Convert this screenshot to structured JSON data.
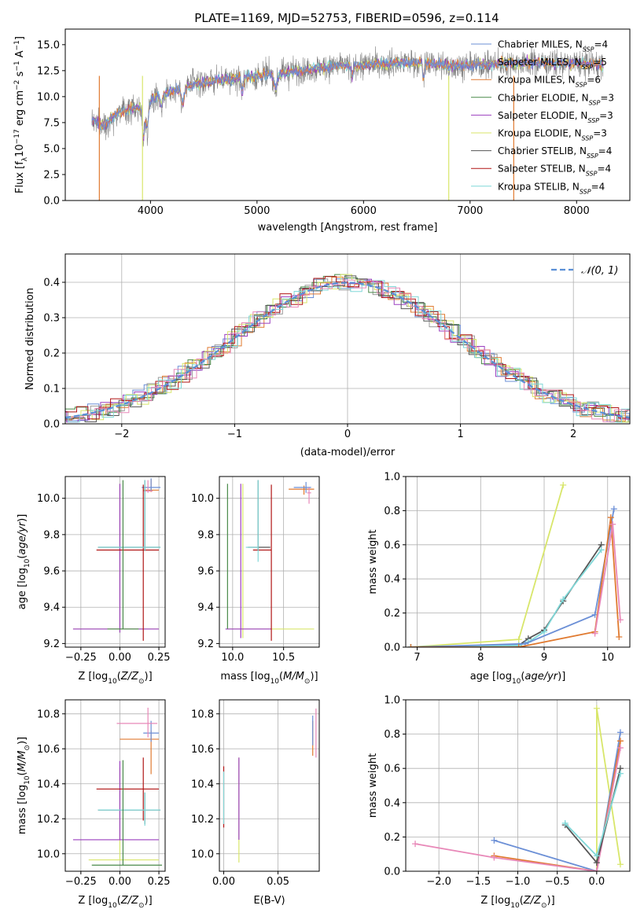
{
  "figure_title": "PLATE=1169, MJD=52753, FIBERID=0596, z=0.114",
  "colors": {
    "chabrier_miles": "#6b8fd6",
    "salpeter_miles": "#9a9a9a",
    "kroupa_miles": "#e07a30",
    "chabrier_elodie": "#4a8a4a",
    "salpeter_elodie": "#9b3fbf",
    "kroupa_elodie": "#d8e66a",
    "chabrier_stelib": "#555555",
    "salpeter_stelib": "#b01515",
    "kroupa_stelib": "#80d8d8",
    "pink": "#e888b8",
    "gauss": "#5a8fd6",
    "grid": "#b0b0b0"
  },
  "chart_data": [
    {
      "id": "spectrum",
      "type": "line",
      "title": "PLATE=1169, MJD=52753, FIBERID=0596, z=0.114",
      "xlabel": "wavelength [Angstrom, rest frame]",
      "ylabel": "Flux [f_λ 10^-17 erg cm^-2 s^-1 A^-1]",
      "xlim": [
        3200,
        8500
      ],
      "ylim": [
        0,
        16.5
      ],
      "xticks": [
        "4000",
        "5000",
        "6000",
        "7000",
        "8000"
      ],
      "yticks": [
        "0.0",
        "2.5",
        "5.0",
        "7.5",
        "10.0",
        "12.5",
        "15.0"
      ],
      "legend": [
        "Chabrier MILES, NSSP=4",
        "Salpeter MILES, NSSP=5",
        "Kroupa MILES, NSSP=6",
        "Chabrier ELODIE, NSSP=3",
        "Salpeter ELODIE, NSSP=3",
        "Kroupa ELODIE, NSSP=3",
        "Chabrier STELIB, NSSP=4",
        "Salpeter STELIB, NSSP=4",
        "Kroupa STELIB, NSSP=4"
      ],
      "legend_placement": "right",
      "data_envelope": {
        "x": [
          3450,
          3550,
          3700,
          3900,
          4000,
          4200,
          4400,
          4600,
          4800,
          5000,
          5200,
          5400,
          5600,
          5800,
          6000,
          6200,
          6400,
          6600,
          6800,
          7000,
          7200,
          7400,
          7600,
          7800,
          8000,
          8200,
          8250
        ],
        "y": [
          7.8,
          7.2,
          8.5,
          9.0,
          9.8,
          10.5,
          11.2,
          11.5,
          11.8,
          12.0,
          12.3,
          12.5,
          12.8,
          13.0,
          13.0,
          13.2,
          13.3,
          13.2,
          13.0,
          13.0,
          13.1,
          13.2,
          13.3,
          13.2,
          13.2,
          13.1,
          13.0
        ]
      }
    },
    {
      "id": "residuals",
      "type": "histogram",
      "xlabel": "(data-model)/error",
      "ylabel": "Normed distribution",
      "xlim": [
        -2.5,
        2.5
      ],
      "ylim": [
        0,
        0.48
      ],
      "xticks": [
        "−2",
        "−1",
        "0",
        "1",
        "2"
      ],
      "yticks": [
        "0.0",
        "0.1",
        "0.2",
        "0.3",
        "0.4"
      ],
      "legend": [
        "𝒩(0, 1)"
      ],
      "legend_placement": "top-right"
    },
    {
      "id": "age_vs_Z",
      "type": "scatter",
      "xlabel": "Z [log10(Z/Z⊙)]",
      "ylabel": "age  [log10(age/yr)]",
      "xlim": [
        -0.35,
        0.29
      ],
      "ylim": [
        9.18,
        10.12
      ],
      "xticks": [
        "−0.25",
        "0.00",
        "0.25"
      ],
      "yticks": [
        "9.2",
        "9.4",
        "9.6",
        "9.8",
        "10.0"
      ]
    },
    {
      "id": "age_vs_mass",
      "type": "scatter",
      "xlabel": "mass [log10(M/M⊙)]",
      "xlim": [
        9.87,
        10.85
      ],
      "ylim": [
        9.18,
        10.12
      ],
      "xticks": [
        "10.0",
        "10.5"
      ],
      "yticks": [
        "9.2",
        "9.4",
        "9.6",
        "9.8",
        "10.0"
      ]
    },
    {
      "id": "weight_vs_age",
      "type": "line",
      "xlabel": "age  [log10(age/yr)]",
      "ylabel": "mass weight",
      "xlim": [
        6.82,
        10.35
      ],
      "ylim": [
        0,
        1.0
      ],
      "xticks": [
        "7",
        "8",
        "9",
        "10"
      ],
      "yticks": [
        "0.0",
        "0.2",
        "0.4",
        "0.6",
        "0.8",
        "1.0"
      ],
      "series": [
        {
          "color": "kroupa_elodie",
          "x": [
            6.9,
            8.6,
            9.3
          ],
          "y": [
            0.0,
            0.045,
            0.95
          ]
        },
        {
          "color": "chabrier_stelib",
          "x": [
            6.9,
            8.6,
            8.75,
            9.0,
            9.3,
            9.9
          ],
          "y": [
            0.0,
            0.01,
            0.05,
            0.1,
            0.27,
            0.6
          ]
        },
        {
          "color": "kroupa_stelib",
          "x": [
            6.9,
            8.6,
            8.75,
            9.0,
            9.3,
            9.9
          ],
          "y": [
            0.0,
            0.01,
            0.03,
            0.09,
            0.28,
            0.57
          ]
        },
        {
          "color": "chabrier_miles",
          "x": [
            6.9,
            8.7,
            9.8,
            10.1
          ],
          "y": [
            0.0,
            0.02,
            0.19,
            0.81
          ]
        },
        {
          "color": "kroupa_miles",
          "x": [
            6.9,
            8.6,
            9.8,
            10.05,
            10.18
          ],
          "y": [
            0.0,
            0.0,
            0.09,
            0.76,
            0.06
          ]
        },
        {
          "color": "pink",
          "x": [
            9.8,
            10.08,
            10.2
          ],
          "y": [
            0.08,
            0.72,
            0.16
          ]
        }
      ]
    },
    {
      "id": "mass_vs_Z",
      "type": "scatter",
      "xlabel": "Z [log10(Z/Z⊙)]",
      "ylabel": "mass [log10(M/M⊙)]",
      "xlim": [
        -0.35,
        0.29
      ],
      "ylim": [
        9.9,
        10.88
      ],
      "xticks": [
        "−0.25",
        "0.00",
        "0.25"
      ],
      "yticks": [
        "10.0",
        "10.2",
        "10.4",
        "10.6",
        "10.8"
      ]
    },
    {
      "id": "mass_vs_ebv",
      "type": "scatter",
      "xlabel": "E(B-V)",
      "xlim": [
        -0.004,
        0.088
      ],
      "ylim": [
        9.9,
        10.88
      ],
      "xticks": [
        "0.00",
        "0.05"
      ],
      "yticks": [
        "10.0",
        "10.2",
        "10.4",
        "10.6",
        "10.8"
      ]
    },
    {
      "id": "weight_vs_Z",
      "type": "line",
      "xlabel": "Z [log10(Z/Z⊙)]",
      "ylabel": "mass weight",
      "xlim": [
        -2.42,
        0.42
      ],
      "ylim": [
        0,
        1.0
      ],
      "xticks": [
        "−2.0",
        "−1.5",
        "−1.0",
        "−0.5",
        "0.0"
      ],
      "yticks": [
        "0.0",
        "0.2",
        "0.4",
        "0.6",
        "0.8",
        "1.0"
      ],
      "series": [
        {
          "color": "kroupa_elodie",
          "x": [
            0.0,
            0.0,
            0.3
          ],
          "y": [
            0.0,
            0.95,
            0.04
          ]
        },
        {
          "color": "chabrier_miles",
          "x": [
            -1.3,
            0.0,
            0.3
          ],
          "y": [
            0.18,
            0.0,
            0.81
          ]
        },
        {
          "color": "kroupa_miles",
          "x": [
            -1.3,
            0.0,
            0.3
          ],
          "y": [
            0.09,
            0.0,
            0.76
          ]
        },
        {
          "color": "pink",
          "x": [
            -2.3,
            -1.3,
            0.0,
            0.3
          ],
          "y": [
            0.16,
            0.08,
            0.0,
            0.72
          ]
        },
        {
          "color": "chabrier_stelib",
          "x": [
            -0.4,
            0.0,
            0.3
          ],
          "y": [
            0.27,
            0.05,
            0.6
          ]
        },
        {
          "color": "kroupa_stelib",
          "x": [
            -0.4,
            0.0,
            0.3
          ],
          "y": [
            0.28,
            0.09,
            0.57
          ]
        }
      ]
    }
  ]
}
